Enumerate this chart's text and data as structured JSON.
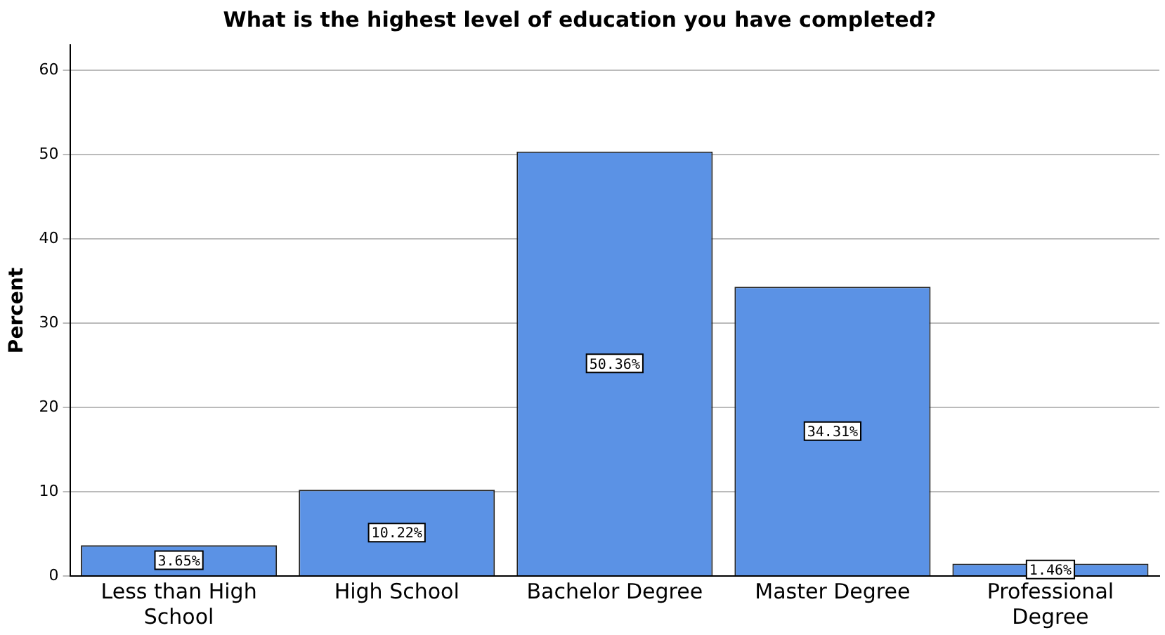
{
  "chart_data": {
    "type": "bar",
    "title": "What is the highest level of education you have completed?",
    "ylabel": "Percent",
    "categories": [
      "Less than High School",
      "High School",
      "Bachelor Degree",
      "Master Degree",
      "Professional Degree"
    ],
    "values": [
      3.65,
      10.22,
      50.36,
      34.31,
      1.46
    ],
    "value_labels": [
      "3.65%",
      "10.22%",
      "50.36%",
      "34.31%",
      "1.46%"
    ],
    "color": "#5b92e5",
    "ylim": [
      0,
      63
    ],
    "yticks": [
      0,
      10,
      20,
      30,
      40,
      50,
      60
    ],
    "grid": "y",
    "legend": false
  }
}
